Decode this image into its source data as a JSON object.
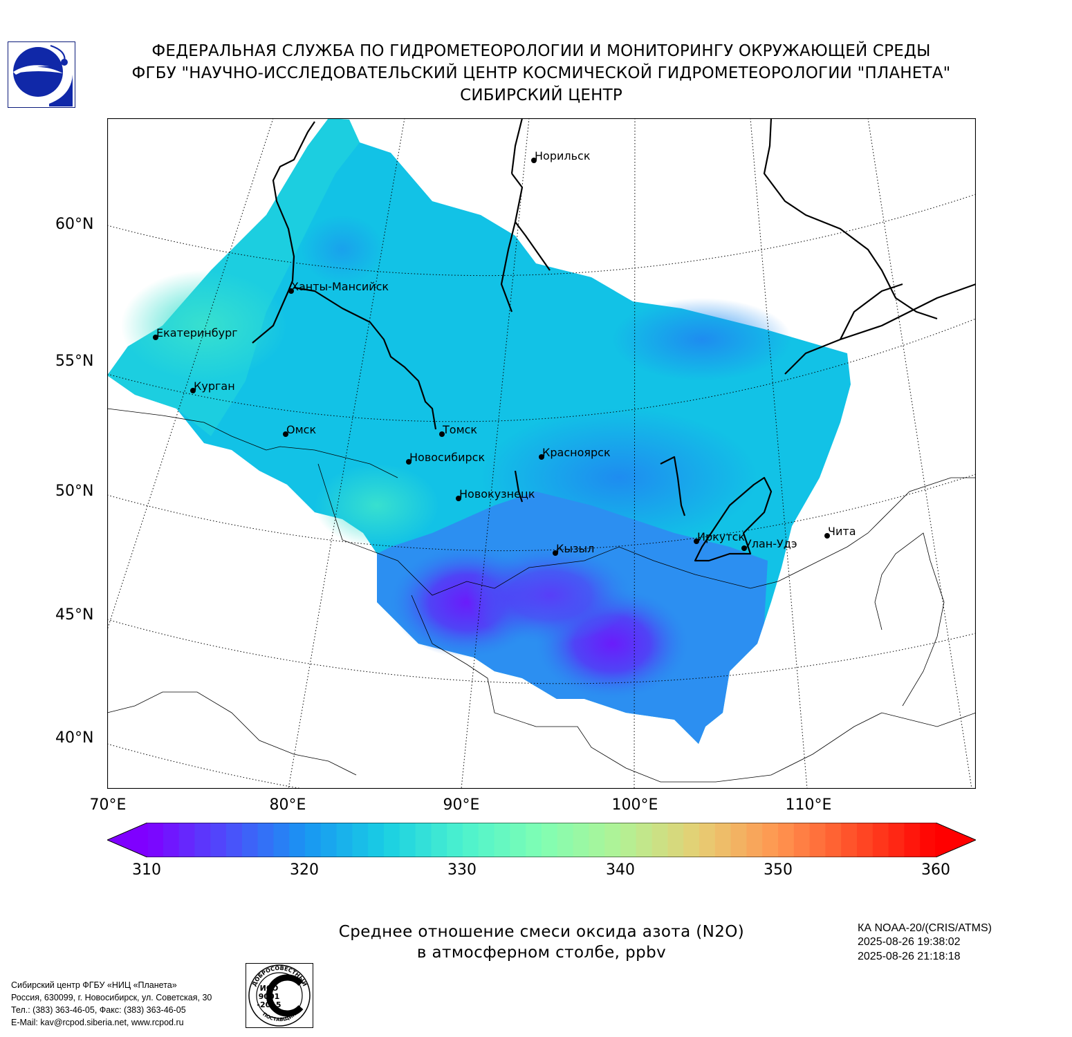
{
  "header": {
    "line1": "ФЕДЕРАЛЬНАЯ СЛУЖБА ПО ГИДРОМЕТЕОРОЛОГИИ И МОНИТОРИНГУ ОКРУЖАЮЩЕЙ СРЕДЫ",
    "line2": "ФГБУ \"НАУЧНО-ИССЛЕДОВАТЕЛЬСКИЙ ЦЕНТР КОСМИЧЕСКОЙ ГИДРОМЕТЕОРОЛОГИИ \"ПЛАНЕТА\"",
    "line3": "СИБИРСКИЙ ЦЕНТР"
  },
  "map": {
    "lat_labels": [
      "60°N",
      "55°N",
      "50°N",
      "45°N",
      "40°N"
    ],
    "lon_labels": [
      "70°E",
      "80°E",
      "90°E",
      "100°E",
      "110°E"
    ],
    "cities": [
      {
        "name": "Норильск"
      },
      {
        "name": "Ханты-Мансийск"
      },
      {
        "name": "Екатеринбург"
      },
      {
        "name": "Курган"
      },
      {
        "name": "Омск"
      },
      {
        "name": "Томск"
      },
      {
        "name": "Новосибирск"
      },
      {
        "name": "Красноярск"
      },
      {
        "name": "Новокузнецк"
      },
      {
        "name": "Кызыл"
      },
      {
        "name": "Иркутск"
      },
      {
        "name": "Улан-Удэ"
      },
      {
        "name": "Чита"
      }
    ]
  },
  "colorbar": {
    "ticks": [
      "310",
      "320",
      "330",
      "340",
      "350",
      "360"
    ],
    "min": 310,
    "max": 360,
    "colors": [
      "#7f00ff",
      "#4d4dfb",
      "#1995f2",
      "#19cee3",
      "#4cf2ce",
      "#80feb3",
      "#b2f295",
      "#e6ce73",
      "#ff9550",
      "#ff4d27",
      "#ff0000"
    ]
  },
  "caption": {
    "line1": "Среднее отношение смеси оксида азота (N2O)",
    "line2": "в атмосферном столбе, ppbv"
  },
  "satellite": {
    "line1": "КА NOAA-20/(CRIS/ATMS)",
    "line2": "2025-08-26 19:38:02",
    "line3": "2025-08-26 21:18:18"
  },
  "contact": {
    "line1": "Сибирский центр ФГБУ «НИЦ «Планета»",
    "line2": "Россия, 630099, г. Новосибирск, ул. Советская, 30",
    "line3": "Тел.: (383) 363-46-05, Факс: (383) 363-46-05",
    "line4": "E-Mail: kav@rcpod.siberia.net, www.rcpod.ru"
  },
  "badge": {
    "top_text": "ДОБРОСОВЕСТНЫЙ",
    "mid1": "ИСО",
    "mid2": "9001",
    "mid3": "-2015",
    "bottom_text": "ПОСТАВЩИК"
  }
}
